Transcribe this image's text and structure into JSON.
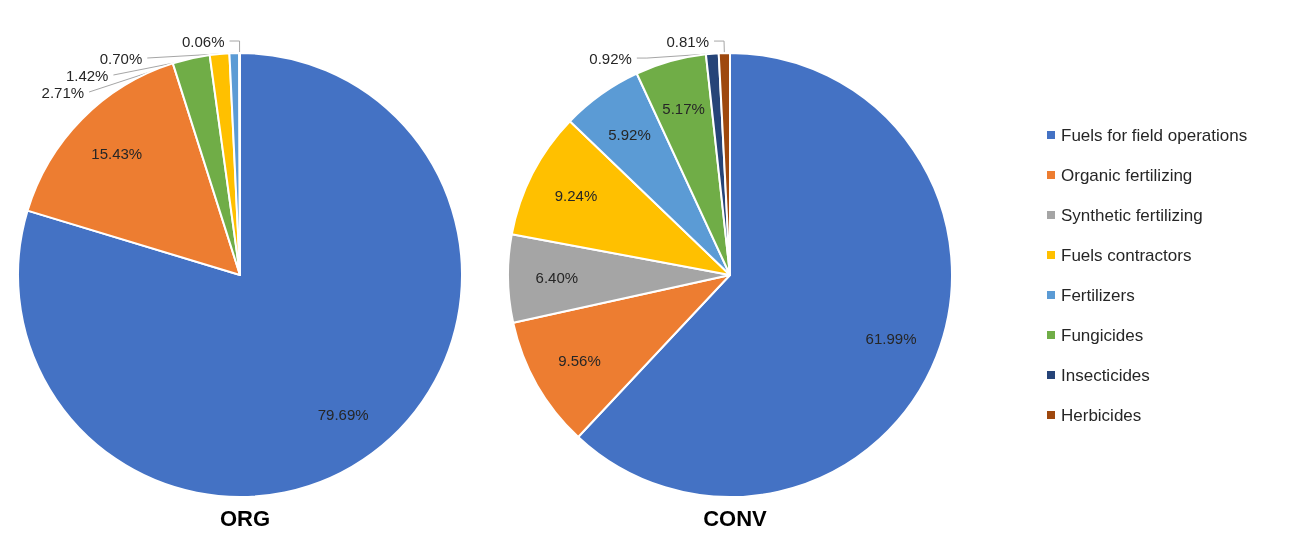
{
  "chart_data": [
    {
      "type": "pie",
      "title": "ORG",
      "legend": false,
      "categories": [
        null,
        null,
        null,
        null,
        null,
        null
      ],
      "values": [
        79.69,
        15.43,
        2.71,
        1.42,
        0.7,
        0.06
      ],
      "value_labels": [
        "79.69%",
        "15.43%",
        "2.71%",
        "1.42%",
        "0.70%",
        "0.06%"
      ],
      "colors": [
        "#4472c4",
        "#ed7d31",
        "#70ad47",
        "#ffc000",
        "#5b9bd5",
        "#a5a5a5"
      ]
    },
    {
      "type": "pie",
      "title": "CONV",
      "legend": "right",
      "categories": [
        "Fuels for field operations",
        "Organic fertilizing",
        "Synthetic fertilizing",
        "Fuels contractors",
        "Fertilizers",
        "Fungicides",
        "Insecticides",
        "Herbicides"
      ],
      "values": [
        61.99,
        9.56,
        6.4,
        9.24,
        5.92,
        5.17,
        0.92,
        0.81
      ],
      "value_labels": [
        "61.99%",
        "9.56%",
        "6.40%",
        "9.24%",
        "5.92%",
        "5.17%",
        "0.92%",
        "0.81%"
      ],
      "colors": [
        "#4472c4",
        "#ed7d31",
        "#a5a5a5",
        "#ffc000",
        "#5b9bd5",
        "#70ad47",
        "#264478",
        "#9e480e"
      ]
    }
  ]
}
